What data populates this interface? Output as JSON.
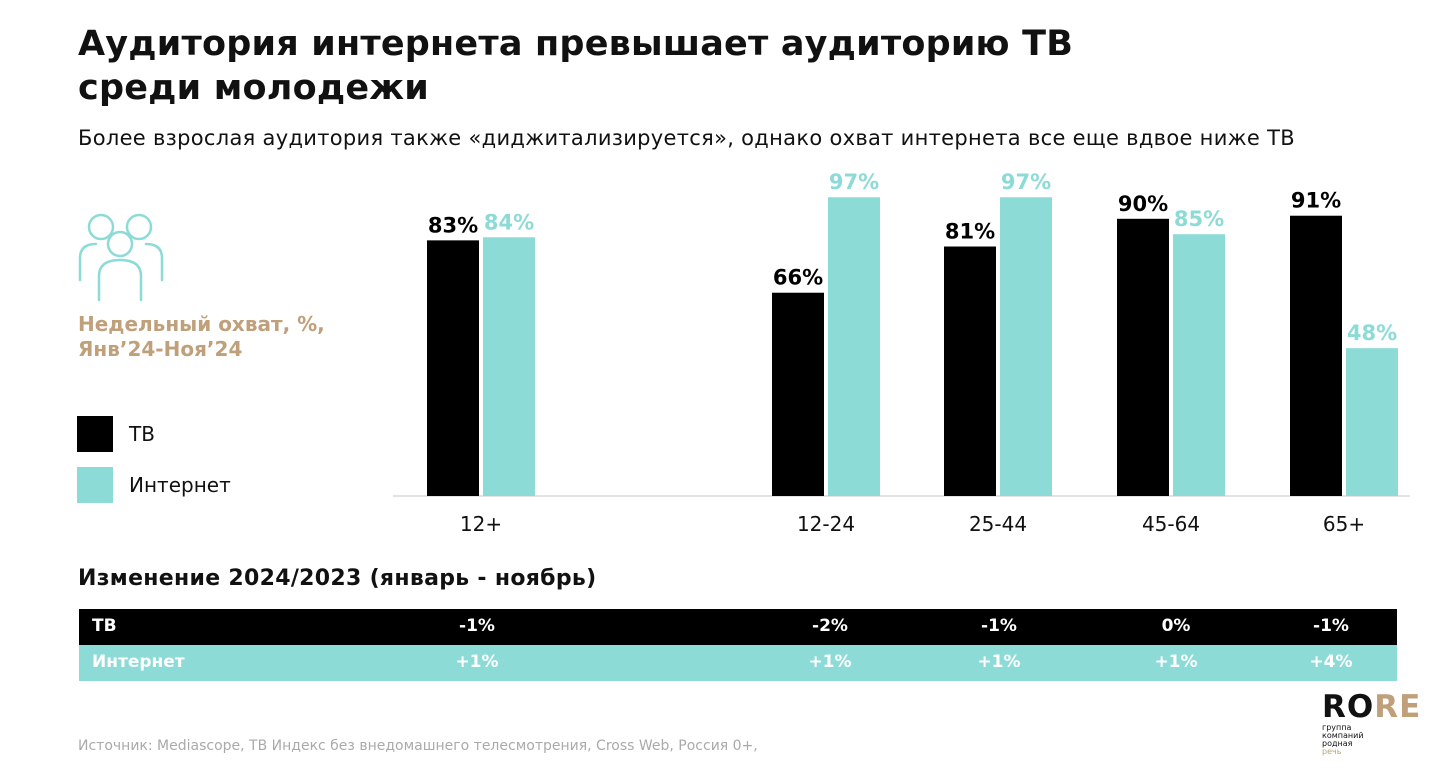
{
  "header": {
    "title_line1": "Аудитория интернета превышает аудиторию ТВ",
    "title_line2": "среди молодежи",
    "subtitle": "Более взрослая аудитория также «диджитализируется», однако охват интернета все еще вдвое ниже ТВ"
  },
  "sidebar": {
    "icon": "people-group-icon",
    "reach_label_line1": "Недельный охват, %,",
    "reach_label_line2": "Янв’24-Ноя’24",
    "legend": [
      {
        "label": "ТВ",
        "color": "#000000"
      },
      {
        "label": "Интернет",
        "color": "#8ddbd7"
      }
    ]
  },
  "chart_data": {
    "type": "bar",
    "categories": [
      "12+",
      "12-24",
      "25-44",
      "45-64",
      "65+"
    ],
    "series": [
      {
        "name": "ТВ",
        "color": "#000000",
        "label_color": "#000000",
        "values": [
          83,
          66,
          81,
          90,
          91
        ],
        "labels": [
          "83%",
          "66%",
          "81%",
          "90%",
          "91%"
        ]
      },
      {
        "name": "Интернет",
        "color": "#8ddbd7",
        "label_color": "#8ddbd7",
        "values": [
          84,
          97,
          97,
          85,
          48
        ],
        "labels": [
          "84%",
          "97%",
          "97%",
          "85%",
          "48%"
        ]
      }
    ],
    "ylim": [
      0,
      100
    ],
    "grid": false,
    "legend_position": "left"
  },
  "change_table": {
    "title": "Изменение 2024/2023 (январь - ноябрь)",
    "rows": [
      {
        "label": "ТВ",
        "values": [
          "-1%",
          "-2%",
          "-1%",
          "0%",
          "-1%"
        ]
      },
      {
        "label": "Интернет",
        "values": [
          "+1%",
          "+1%",
          "+1%",
          "+1%",
          "+4%"
        ]
      }
    ]
  },
  "footer": {
    "source": "Источник: Mediascope, ТВ Индекс без внедомашнего телесмотрения, Cross Web, Россия 0+,",
    "logo_main": "RO",
    "logo_accent": "RE",
    "logo_tagline": [
      "группа",
      "компаний",
      "родная",
      "речь"
    ]
  }
}
